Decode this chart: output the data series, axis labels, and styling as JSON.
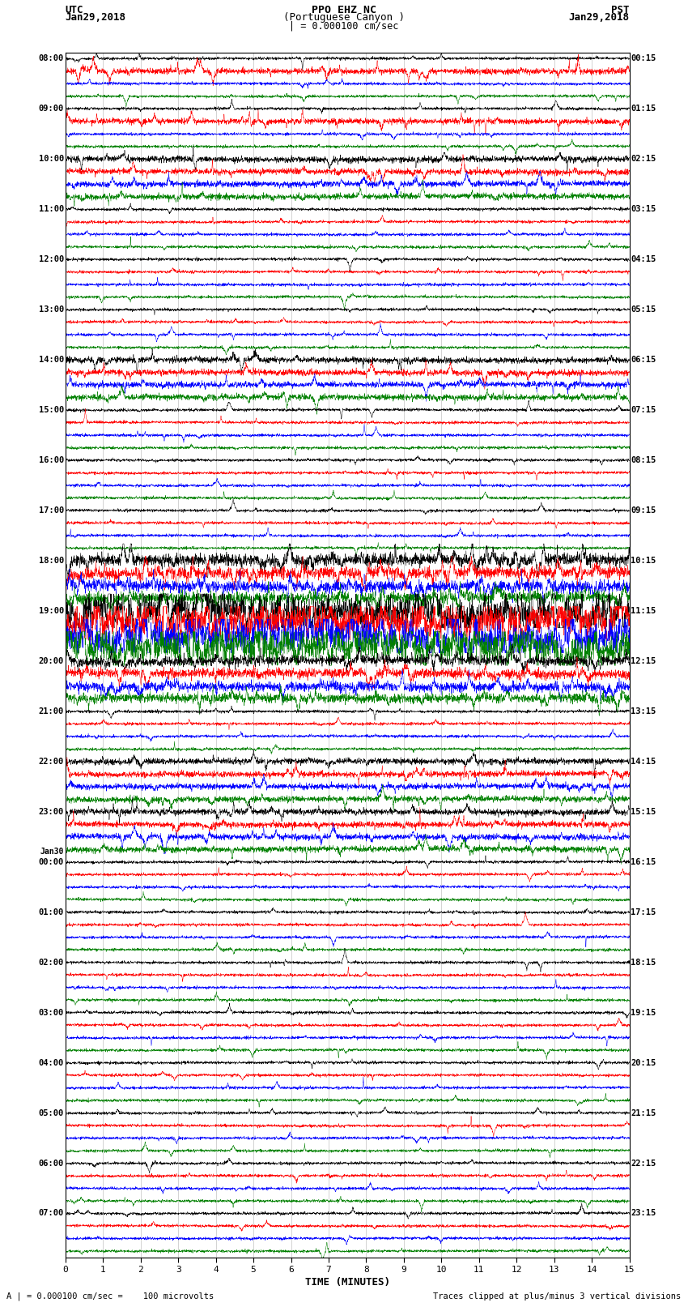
{
  "title_line1": "PPO EHZ NC",
  "title_line2": "(Portuguese Canyon )",
  "title_line3": "| = 0.000100 cm/sec",
  "utc_label": "UTC",
  "utc_date": "Jan29,2018",
  "pst_label": "PST",
  "pst_date": "Jan29,2018",
  "xlabel": "TIME (MINUTES)",
  "footnote_left": "A | = 0.000100 cm/sec =    100 microvolts",
  "footnote_right": "Traces clipped at plus/minus 3 vertical divisions",
  "colors": [
    "black",
    "red",
    "blue",
    "green"
  ],
  "background_color": "white",
  "plot_bg": "white",
  "x_min": 0,
  "x_max": 15,
  "x_ticks": [
    0,
    1,
    2,
    3,
    4,
    5,
    6,
    7,
    8,
    9,
    10,
    11,
    12,
    13,
    14,
    15
  ],
  "utc_times": [
    "08:00",
    "09:00",
    "10:00",
    "11:00",
    "12:00",
    "13:00",
    "14:00",
    "15:00",
    "16:00",
    "17:00",
    "18:00",
    "19:00",
    "20:00",
    "21:00",
    "22:00",
    "23:00",
    "00:00",
    "01:00",
    "02:00",
    "03:00",
    "04:00",
    "05:00",
    "06:00",
    "07:00"
  ],
  "utc_dates": [
    "",
    "",
    "",
    "",
    "",
    "",
    "",
    "",
    "",
    "",
    "",
    "",
    "",
    "",
    "",
    "",
    "Jan30",
    "",
    "",
    "",
    "",
    "",
    "",
    ""
  ],
  "pst_times": [
    "00:15",
    "01:15",
    "02:15",
    "03:15",
    "04:15",
    "05:15",
    "06:15",
    "07:15",
    "08:15",
    "09:15",
    "10:15",
    "11:15",
    "12:15",
    "13:15",
    "14:15",
    "15:15",
    "16:15",
    "17:15",
    "18:15",
    "19:15",
    "20:15",
    "21:15",
    "22:15",
    "23:15"
  ],
  "n_groups": 24,
  "traces_per_group": 4,
  "n_minutes": 15,
  "samples_per_minute": 200,
  "noise_seed": 12345
}
